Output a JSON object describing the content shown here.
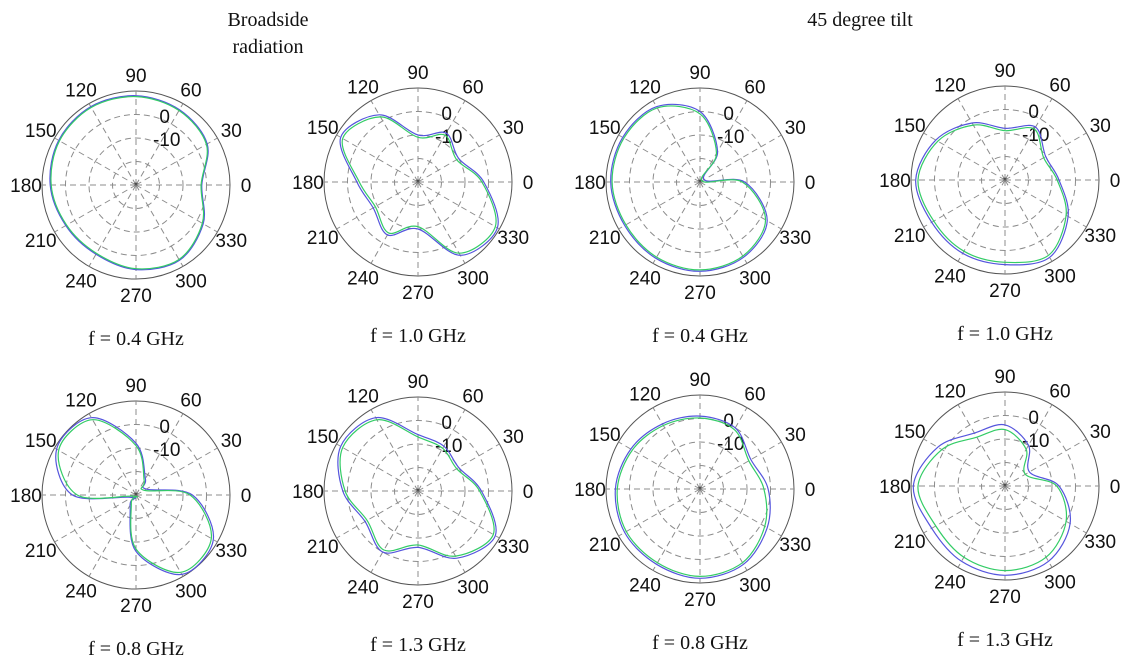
{
  "titles": {
    "left_line1": "Broadside",
    "left_line2": "radiation",
    "right": "45 degree tilt"
  },
  "chart_data": [
    {
      "type": "polar",
      "caption": "f = 0.4 GHz",
      "group": "Broadside radiation",
      "theta_ticks": [
        0,
        30,
        60,
        90,
        120,
        150,
        180,
        210,
        240,
        270,
        300,
        330
      ],
      "radial_ticks": [
        0,
        -10
      ],
      "rlim": [
        -30,
        10
      ],
      "series": [
        {
          "color": "#5555dd",
          "theta": [
            0,
            30,
            60,
            90,
            120,
            150,
            180,
            210,
            240,
            270,
            300,
            330
          ],
          "r": [
            -2,
            5,
            7,
            8,
            8.5,
            8,
            6.5,
            4.5,
            4,
            6,
            7,
            3
          ]
        },
        {
          "color": "#33cc66",
          "theta": [
            0,
            30,
            60,
            90,
            120,
            150,
            180,
            210,
            240,
            270,
            300,
            330
          ],
          "r": [
            -2.3,
            4.6,
            6.6,
            7.6,
            8.1,
            7.6,
            6.1,
            4.1,
            3.6,
            5.6,
            6.6,
            2.6
          ]
        }
      ]
    },
    {
      "type": "polar",
      "caption": "f = 1.0 GHz",
      "group": "Broadside radiation",
      "theta_ticks": [
        0,
        30,
        60,
        90,
        120,
        150,
        180,
        210,
        240,
        270,
        300,
        330
      ],
      "radial_ticks": [
        0,
        -10
      ],
      "rlim": [
        -30,
        10
      ],
      "series": [
        {
          "color": "#5555dd",
          "theta": [
            0,
            30,
            60,
            90,
            120,
            150,
            180,
            210,
            240,
            270,
            300,
            330
          ],
          "r": [
            -2,
            -10,
            -6,
            -10,
            3,
            8,
            -4,
            -8,
            -4,
            -10,
            6,
            9
          ]
        },
        {
          "color": "#33cc66",
          "theta": [
            0,
            30,
            60,
            90,
            120,
            150,
            180,
            210,
            240,
            270,
            300,
            330
          ],
          "r": [
            -2.8,
            -11,
            -7,
            -11,
            2,
            7,
            -5,
            -9,
            -5,
            -11,
            5,
            8
          ]
        }
      ]
    },
    {
      "type": "polar",
      "caption": "f = 0.4 GHz",
      "group": "45 degree tilt",
      "theta_ticks": [
        0,
        30,
        60,
        90,
        120,
        150,
        180,
        210,
        240,
        270,
        300,
        330
      ],
      "radial_ticks": [
        0,
        -10
      ],
      "rlim": [
        -30,
        10
      ],
      "series": [
        {
          "color": "#5555dd",
          "theta": [
            0,
            30,
            60,
            90,
            120,
            150,
            180,
            210,
            240,
            270,
            300,
            330
          ],
          "r": [
            -11,
            -28,
            -15,
            0,
            7,
            8,
            8,
            7,
            7.5,
            8,
            7,
            3
          ]
        },
        {
          "color": "#33cc66",
          "theta": [
            0,
            30,
            60,
            90,
            120,
            150,
            180,
            210,
            240,
            270,
            300,
            330
          ],
          "r": [
            -12,
            -29,
            -16,
            -1,
            6.4,
            7.4,
            7.4,
            6.4,
            6.9,
            7.4,
            6.4,
            2.2
          ]
        }
      ]
    },
    {
      "type": "polar",
      "caption": "f = 1.0 GHz",
      "group": "45 degree tilt",
      "theta_ticks": [
        0,
        30,
        60,
        90,
        120,
        150,
        180,
        210,
        240,
        270,
        300,
        330
      ],
      "radial_ticks": [
        0,
        -10
      ],
      "rlim": [
        -30,
        10
      ],
      "series": [
        {
          "color": "#5555dd",
          "theta": [
            0,
            30,
            60,
            90,
            120,
            150,
            180,
            210,
            240,
            270,
            300,
            330
          ],
          "r": [
            -7,
            -10,
            -4,
            -8,
            -2,
            4,
            8,
            6,
            6,
            6,
            8,
            1
          ]
        },
        {
          "color": "#33cc66",
          "theta": [
            0,
            30,
            60,
            90,
            120,
            150,
            180,
            210,
            240,
            270,
            300,
            330
          ],
          "r": [
            -7.8,
            -11,
            -5,
            -9,
            -3,
            3,
            7,
            5,
            5,
            5,
            7,
            0
          ]
        }
      ]
    },
    {
      "type": "polar",
      "caption": "f = 0.8 GHz",
      "group": "Broadside radiation",
      "theta_ticks": [
        0,
        30,
        60,
        90,
        120,
        150,
        180,
        210,
        240,
        270,
        300,
        330
      ],
      "radial_ticks": [
        0,
        -10
      ],
      "rlim": [
        -30,
        10
      ],
      "series": [
        {
          "color": "#5555dd",
          "theta": [
            0,
            30,
            60,
            90,
            120,
            150,
            180,
            210,
            240,
            270,
            300,
            330
          ],
          "r": [
            -6,
            -25,
            -22,
            -8,
            8,
            9,
            -3,
            -28,
            -25,
            -6,
            9,
            8
          ]
        },
        {
          "color": "#33cc66",
          "theta": [
            0,
            30,
            60,
            90,
            120,
            150,
            180,
            210,
            240,
            270,
            300,
            330
          ],
          "r": [
            -7,
            -26,
            -23,
            -9,
            7,
            8,
            -5,
            -29,
            -26,
            -7,
            8,
            7
          ]
        }
      ]
    },
    {
      "type": "polar",
      "caption": "f = 1.3 GHz",
      "group": "Broadside radiation",
      "theta_ticks": [
        0,
        30,
        60,
        90,
        120,
        150,
        180,
        210,
        240,
        270,
        300,
        330
      ],
      "radial_ticks": [
        0,
        -10
      ],
      "rlim": [
        -30,
        10
      ],
      "series": [
        {
          "color": "#5555dd",
          "theta": [
            0,
            30,
            60,
            90,
            120,
            150,
            180,
            210,
            240,
            270,
            300,
            330
          ],
          "r": [
            -3,
            -10,
            -8,
            -6,
            6,
            8,
            2,
            -4,
            0,
            -6,
            3,
            8
          ]
        },
        {
          "color": "#33cc66",
          "theta": [
            0,
            30,
            60,
            90,
            120,
            150,
            180,
            210,
            240,
            270,
            300,
            330
          ],
          "r": [
            -3.8,
            -11,
            -9,
            -7,
            5,
            7,
            1,
            -5,
            -1,
            -7,
            2,
            7
          ]
        }
      ]
    },
    {
      "type": "polar",
      "caption": "f = 0.8 GHz",
      "group": "45 degree tilt",
      "theta_ticks": [
        0,
        30,
        60,
        90,
        120,
        150,
        180,
        210,
        240,
        270,
        300,
        330
      ],
      "radial_ticks": [
        0,
        -10
      ],
      "rlim": [
        -30,
        10
      ],
      "series": [
        {
          "color": "#5555dd",
          "theta": [
            0,
            30,
            60,
            90,
            120,
            150,
            180,
            210,
            240,
            270,
            300,
            330
          ],
          "r": [
            -1,
            -5,
            0,
            1,
            2,
            4,
            6,
            7,
            7,
            8,
            7,
            3
          ]
        },
        {
          "color": "#33cc66",
          "theta": [
            0,
            30,
            60,
            90,
            120,
            150,
            180,
            210,
            240,
            270,
            300,
            330
          ],
          "r": [
            -2.8,
            -6,
            -0.8,
            0.2,
            1.2,
            3.2,
            5.2,
            6.2,
            6.2,
            7.2,
            6.2,
            1.8
          ]
        }
      ]
    },
    {
      "type": "polar",
      "caption": "f = 1.3 GHz",
      "group": "45 degree tilt",
      "theta_ticks": [
        0,
        30,
        60,
        90,
        120,
        150,
        180,
        210,
        240,
        270,
        300,
        330
      ],
      "radial_ticks": [
        0,
        -10
      ],
      "rlim": [
        -30,
        10
      ],
      "series": [
        {
          "color": "#5555dd",
          "theta": [
            0,
            30,
            60,
            90,
            120,
            150,
            180,
            210,
            240,
            270,
            300,
            330
          ],
          "r": [
            -7,
            -18,
            -10,
            -4,
            -4,
            3,
            9,
            6,
            7,
            8,
            7,
            2
          ]
        },
        {
          "color": "#33cc66",
          "theta": [
            0,
            30,
            60,
            90,
            120,
            150,
            180,
            210,
            240,
            270,
            300,
            330
          ],
          "r": [
            -8,
            -20,
            -12,
            -6,
            -6,
            1,
            7,
            4,
            5,
            6,
            5,
            0
          ]
        }
      ]
    }
  ]
}
